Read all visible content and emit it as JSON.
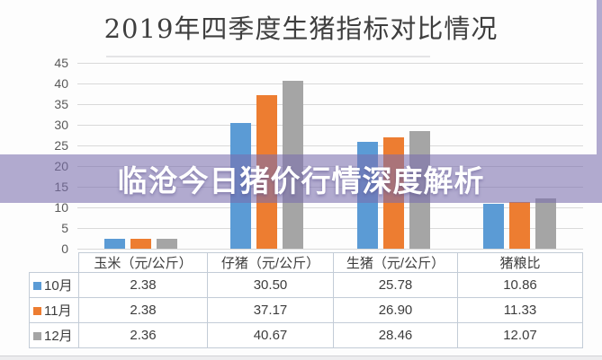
{
  "page": {
    "title": "2019年四季度生猪指标对比情况",
    "overlay_text": "临沧今日猪价行情深度解析"
  },
  "chart_data": {
    "type": "bar",
    "title": "2019年四季度生猪指标对比情况",
    "categories": [
      "玉米（元/公斤）",
      "仔猪（元/公斤）",
      "生猪（元/公斤）",
      "猪粮比"
    ],
    "series": [
      {
        "name": "10月",
        "color": "#5B9BD5",
        "values": [
          2.38,
          30.5,
          25.78,
          10.86
        ]
      },
      {
        "name": "11月",
        "color": "#ED7D31",
        "values": [
          2.38,
          37.17,
          26.9,
          11.33
        ]
      },
      {
        "name": "12月",
        "color": "#A5A5A5",
        "values": [
          2.36,
          40.67,
          28.46,
          12.07
        ]
      }
    ],
    "xlabel": "",
    "ylabel": "",
    "ylim": [
      0,
      45
    ],
    "yticks": [
      0,
      5,
      10,
      15,
      20,
      25,
      30,
      35,
      40,
      45
    ],
    "grid": true,
    "data_table": true,
    "legend_position": "data-table-left",
    "value_decimals": 2
  },
  "colors": {
    "series_blue": "#5B9BD5",
    "series_orange": "#ED7D31",
    "series_gray": "#A5A5A5",
    "banner_background": "rgba(122,111,174,0.58)",
    "banner_text": "#FFFFFF",
    "gridline": "#D9D9D9",
    "table_border": "#C3CCD7",
    "title_text": "#3F3F3F",
    "axis_text": "#595959"
  }
}
